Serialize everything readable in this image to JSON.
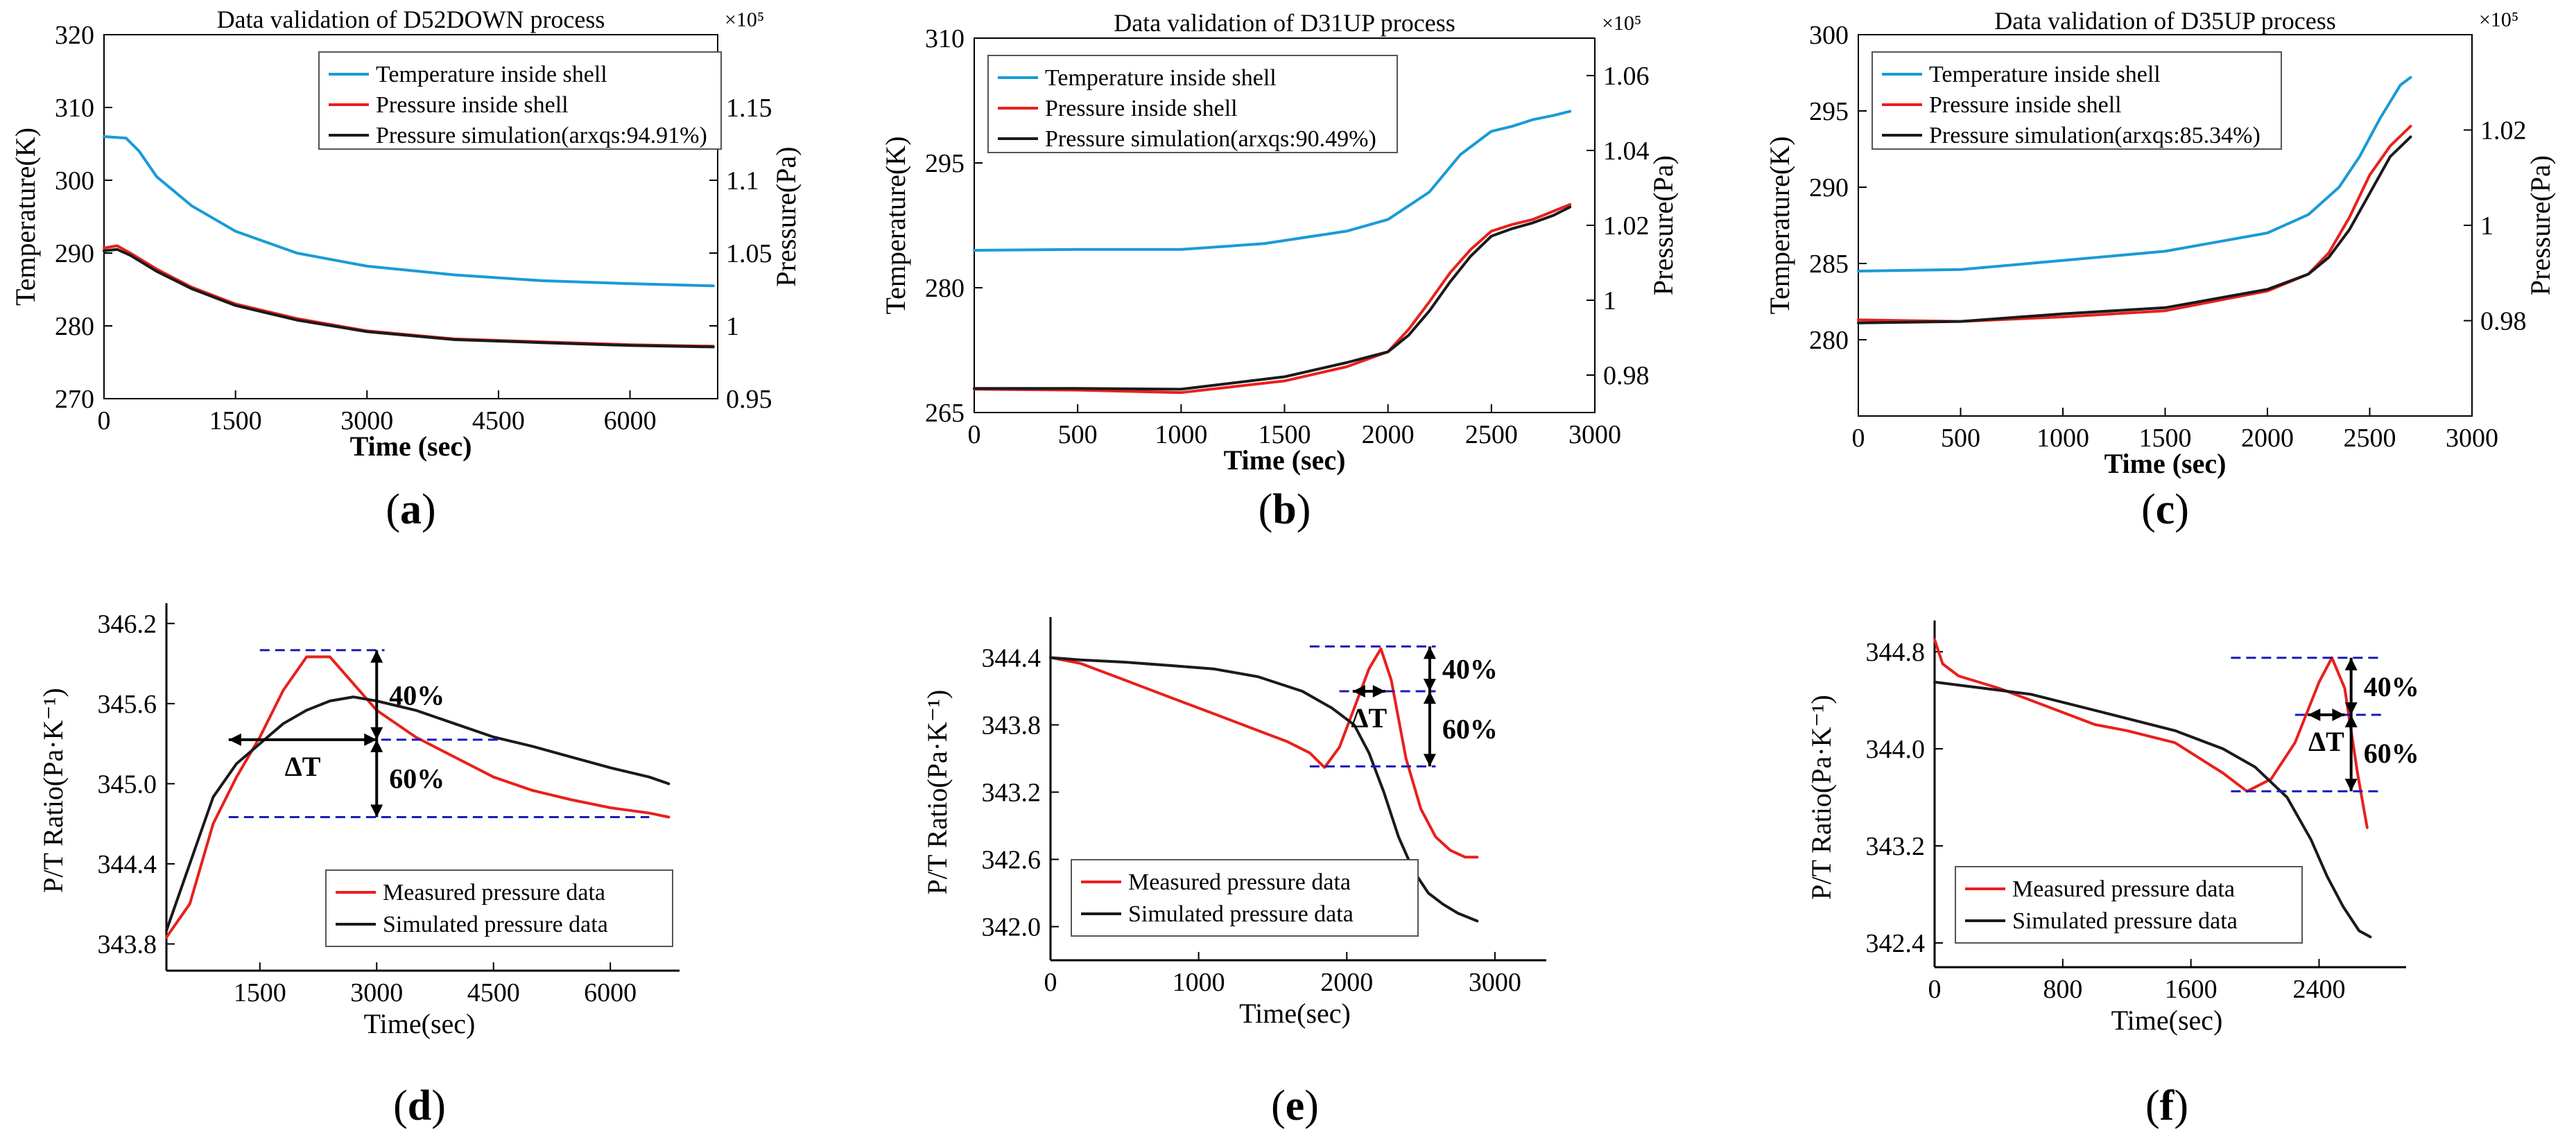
{
  "charts": [
    {
      "id": "a",
      "style": "top",
      "title": "Data validation of D52DOWN process",
      "caption": "a",
      "xlabel": "Time (sec)",
      "ylabel_left": "Temperature(K)",
      "ylabel_right": "Pressure(Pa)",
      "exponent_label": "×10⁵",
      "xlim": [
        0,
        7000
      ],
      "ylim_left": [
        270,
        320
      ],
      "ylim_right": [
        0.95,
        1.2
      ],
      "xticks": [
        0,
        1500,
        3000,
        4500,
        6000
      ],
      "yticks_left": [
        270,
        280,
        290,
        300,
        310,
        320
      ],
      "yticks_right": [
        0.95,
        1,
        1.05,
        1.1,
        1.15
      ],
      "yticks_right_labels": [
        "0.95",
        "1",
        "1.05",
        "1.1",
        "1.15"
      ],
      "legend": [
        "Temperature inside shell",
        "Pressure inside shell",
        "Pressure simulation(arxqs:94.91%)"
      ],
      "series": [
        {
          "name": "Temperature inside shell",
          "color": "#1b9ad6",
          "axis": "left",
          "x": [
            0,
            250,
            400,
            600,
            1000,
            1500,
            2200,
            3000,
            4000,
            5000,
            6000,
            6950
          ],
          "y": [
            306,
            305.8,
            304,
            300.5,
            296.5,
            293,
            290,
            288.2,
            287,
            286.2,
            285.8,
            285.5
          ]
        },
        {
          "name": "Pressure inside shell",
          "color": "#e8201c",
          "axis": "left",
          "x": [
            0,
            150,
            300,
            600,
            1000,
            1500,
            2200,
            3000,
            4000,
            5000,
            6000,
            6950
          ],
          "y": [
            290.7,
            291,
            290,
            287.8,
            285.3,
            283,
            281,
            279.3,
            278.2,
            277.8,
            277.4,
            277.2
          ]
        },
        {
          "name": "Pressure simulation(arxqs:94.91%)",
          "color": "#1a1a1a",
          "axis": "left",
          "x": [
            0,
            150,
            300,
            600,
            1000,
            1500,
            2200,
            3000,
            4000,
            5000,
            6000,
            6950
          ],
          "y": [
            290.3,
            290.5,
            289.7,
            287.5,
            285.1,
            282.8,
            280.8,
            279.2,
            278.1,
            277.7,
            277.3,
            277.1
          ]
        }
      ]
    },
    {
      "id": "b",
      "style": "top",
      "title": "Data validation of D31UP process",
      "caption": "b",
      "xlabel": "Time (sec)",
      "ylabel_left": "Temperature(K)",
      "ylabel_right": "Pressure(Pa)",
      "exponent_label": "×10⁵",
      "xlim": [
        0,
        3000
      ],
      "ylim_left": [
        265,
        310
      ],
      "ylim_right": [
        0.97,
        1.07
      ],
      "xticks": [
        0,
        500,
        1000,
        1500,
        2000,
        2500,
        3000
      ],
      "yticks_left": [
        265,
        280,
        295,
        310
      ],
      "yticks_right": [
        0.98,
        1,
        1.02,
        1.04,
        1.06
      ],
      "yticks_right_labels": [
        "0.98",
        "1",
        "1.02",
        "1.04",
        "1.06"
      ],
      "legend": [
        "Temperature inside shell",
        "Pressure inside shell",
        "Pressure simulation(arxqs:90.49%)"
      ],
      "series": [
        {
          "name": "Temperature inside shell",
          "color": "#1b9ad6",
          "axis": "left",
          "x": [
            0,
            500,
            1000,
            1400,
            1800,
            2000,
            2200,
            2350,
            2500,
            2600,
            2700,
            2800,
            2880
          ],
          "y": [
            284.5,
            284.6,
            284.6,
            285.3,
            286.8,
            288.2,
            291.5,
            296,
            298.8,
            299.4,
            300.2,
            300.7,
            301.2
          ]
        },
        {
          "name": "Pressure inside shell",
          "color": "#e8201c",
          "axis": "left",
          "x": [
            0,
            500,
            1000,
            1500,
            1800,
            2000,
            2100,
            2200,
            2300,
            2400,
            2500,
            2600,
            2700,
            2800,
            2880
          ],
          "y": [
            267.8,
            267.7,
            267.4,
            268.8,
            270.5,
            272.3,
            275,
            278.3,
            281.8,
            284.6,
            286.8,
            287.6,
            288.2,
            289.2,
            290
          ]
        },
        {
          "name": "Pressure simulation(arxqs:90.49%)",
          "color": "#1a1a1a",
          "axis": "left",
          "x": [
            0,
            500,
            1000,
            1500,
            1800,
            2000,
            2100,
            2200,
            2300,
            2400,
            2500,
            2600,
            2700,
            2800,
            2880
          ],
          "y": [
            267.9,
            267.9,
            267.8,
            269.3,
            271,
            272.3,
            274.3,
            277.2,
            280.7,
            283.8,
            286.2,
            287.1,
            287.8,
            288.7,
            289.7
          ]
        }
      ]
    },
    {
      "id": "c",
      "style": "top",
      "title": "Data validation of D35UP process",
      "caption": "c",
      "xlabel": "Time (sec)",
      "ylabel_left": "Temperature(K)",
      "ylabel_right": "Pressure(Pa)",
      "exponent_label": "×10⁵",
      "xlim": [
        0,
        3000
      ],
      "ylim_left": [
        275,
        300
      ],
      "ylim_right": [
        0.96,
        1.04
      ],
      "xticks": [
        0,
        500,
        1000,
        1500,
        2000,
        2500,
        3000
      ],
      "yticks_left": [
        280,
        285,
        290,
        295,
        300
      ],
      "yticks_right": [
        0.98,
        1,
        1.02
      ],
      "yticks_right_labels": [
        "0.98",
        "1",
        "1.02"
      ],
      "legend": [
        "Temperature inside shell",
        "Pressure inside shell",
        "Pressure simulation(arxqs:85.34%)"
      ],
      "series": [
        {
          "name": "Temperature inside shell",
          "color": "#1b9ad6",
          "axis": "left",
          "x": [
            0,
            500,
            1000,
            1500,
            2000,
            2200,
            2350,
            2450,
            2550,
            2650,
            2700
          ],
          "y": [
            284.5,
            284.6,
            285.2,
            285.8,
            287,
            288.2,
            290,
            292,
            294.5,
            296.7,
            297.2
          ]
        },
        {
          "name": "Pressure inside shell",
          "color": "#e8201c",
          "axis": "left",
          "x": [
            0,
            500,
            1000,
            1500,
            2000,
            2200,
            2300,
            2400,
            2500,
            2600,
            2700
          ],
          "y": [
            281.3,
            281.2,
            281.5,
            281.9,
            283.2,
            284.3,
            285.7,
            288,
            290.8,
            292.7,
            294
          ]
        },
        {
          "name": "Pressure simulation(arxqs:85.34%)",
          "color": "#1a1a1a",
          "axis": "left",
          "x": [
            0,
            500,
            1000,
            1500,
            2000,
            2200,
            2300,
            2400,
            2500,
            2600,
            2700
          ],
          "y": [
            281.1,
            281.2,
            281.7,
            282.1,
            283.3,
            284.3,
            285.4,
            287.2,
            289.6,
            292,
            293.3
          ]
        }
      ]
    },
    {
      "id": "d",
      "style": "bottom",
      "caption": "d",
      "xlabel": "Time(sec)",
      "ylabel_left": "P/T Ratio(Pa·K⁻¹)",
      "xlim": [
        300,
        6800
      ],
      "ylim_left": [
        343.6,
        346.3
      ],
      "xticks": [
        1500,
        3000,
        4500,
        6000
      ],
      "yticks_left": [
        343.8,
        344.4,
        345.0,
        345.6,
        346.2
      ],
      "yticks_left_labels": [
        "343.8",
        "344.4",
        "345.0",
        "345.6",
        "346.2"
      ],
      "legend": [
        "Measured pressure data",
        "Simulated pressure data"
      ],
      "annotations": {
        "pct_top": "40%",
        "pct_bottom": "60%",
        "delta": "ΔT",
        "y_top": 346.0,
        "y_mid": 345.33,
        "y_bot": 344.75,
        "x_arrow": 3000,
        "x_delta_from": 1100,
        "x_delta_to": 3000,
        "line_top_x": [
          1500,
          3100
        ],
        "line_mid_x": [
          1100,
          4600
        ],
        "line_bot_x": [
          1100,
          6500
        ]
      },
      "series": [
        {
          "name": "Measured pressure data",
          "color": "#e8201c",
          "x": [
            300,
            600,
            900,
            1200,
            1500,
            1800,
            2100,
            2400,
            2700,
            3000,
            3500,
            4000,
            4500,
            5000,
            5500,
            6000,
            6500,
            6750
          ],
          "y": [
            343.85,
            344.1,
            344.7,
            345.05,
            345.35,
            345.7,
            345.95,
            345.95,
            345.75,
            345.55,
            345.35,
            345.2,
            345.05,
            344.95,
            344.88,
            344.82,
            344.78,
            344.75
          ]
        },
        {
          "name": "Simulated pressure data",
          "color": "#1a1a1a",
          "x": [
            300,
            600,
            900,
            1200,
            1500,
            1800,
            2100,
            2400,
            2700,
            3000,
            3500,
            4000,
            4500,
            5000,
            5500,
            6000,
            6500,
            6750
          ],
          "y": [
            343.9,
            344.4,
            344.9,
            345.15,
            345.3,
            345.45,
            345.55,
            345.62,
            345.65,
            345.62,
            345.55,
            345.45,
            345.35,
            345.28,
            345.2,
            345.12,
            345.05,
            345.0
          ]
        }
      ]
    },
    {
      "id": "e",
      "style": "bottom",
      "caption": "e",
      "xlabel": "Time(sec)",
      "ylabel_left": "P/T Ratio(Pa·K⁻¹)",
      "xlim": [
        0,
        3300
      ],
      "ylim_left": [
        341.7,
        344.7
      ],
      "xticks": [
        0,
        1000,
        2000,
        3000
      ],
      "yticks_left": [
        342.0,
        342.6,
        343.2,
        343.8,
        344.4
      ],
      "yticks_left_labels": [
        "342.0",
        "342.6",
        "343.2",
        "343.8",
        "344.4"
      ],
      "legend": [
        "Measured pressure data",
        "Simulated pressure data"
      ],
      "annotations": {
        "pct_top": "40%",
        "pct_bottom": "60%",
        "delta": "ΔT",
        "y_top": 344.5,
        "y_mid": 344.1,
        "y_bot": 343.43,
        "x_arrow": 2560,
        "x_delta_from": 2040,
        "x_delta_to": 2260,
        "line_top_x": [
          1750,
          2600
        ],
        "line_mid_x": [
          1950,
          2600
        ],
        "line_bot_x": [
          1750,
          2600
        ]
      },
      "series": [
        {
          "name": "Measured pressure data",
          "color": "#e8201c",
          "x": [
            0,
            200,
            500,
            800,
            1100,
            1400,
            1600,
            1750,
            1850,
            1950,
            2050,
            2150,
            2230,
            2300,
            2400,
            2500,
            2600,
            2700,
            2800,
            2880
          ],
          "y": [
            344.4,
            344.35,
            344.2,
            344.05,
            343.9,
            343.75,
            343.65,
            343.55,
            343.42,
            343.6,
            343.95,
            344.3,
            344.48,
            344.2,
            343.5,
            343.05,
            342.8,
            342.68,
            342.62,
            342.62
          ]
        },
        {
          "name": "Simulated pressure data",
          "color": "#1a1a1a",
          "x": [
            0,
            200,
            500,
            800,
            1100,
            1400,
            1700,
            1900,
            2050,
            2150,
            2250,
            2350,
            2450,
            2550,
            2650,
            2750,
            2880
          ],
          "y": [
            344.4,
            344.38,
            344.36,
            344.33,
            344.3,
            344.23,
            344.1,
            343.95,
            343.8,
            343.55,
            343.2,
            342.8,
            342.5,
            342.3,
            342.2,
            342.12,
            342.05
          ]
        }
      ]
    },
    {
      "id": "f",
      "style": "bottom",
      "caption": "f",
      "xlabel": "Time(sec)",
      "ylabel_left": "P/T Ratio(Pa·K⁻¹)",
      "xlim": [
        0,
        2900
      ],
      "ylim_left": [
        342.2,
        345.0
      ],
      "xticks": [
        0,
        800,
        1600,
        2400
      ],
      "yticks_left": [
        342.4,
        343.2,
        344.0,
        344.8
      ],
      "yticks_left_labels": [
        "342.4",
        "343.2",
        "344.0",
        "344.8"
      ],
      "legend": [
        "Measured pressure data",
        "Simulated pressure data"
      ],
      "annotations": {
        "pct_top": "40%",
        "pct_bottom": "60%",
        "delta": "ΔT",
        "y_top": 344.75,
        "y_mid": 344.28,
        "y_bot": 343.65,
        "x_arrow": 2600,
        "x_delta_from": 2330,
        "x_delta_to": 2560,
        "line_top_x": [
          1850,
          2800
        ],
        "line_mid_x": [
          2250,
          2800
        ],
        "line_bot_x": [
          1850,
          2800
        ]
      },
      "series": [
        {
          "name": "Measured pressure data",
          "color": "#e8201c",
          "x": [
            0,
            50,
            150,
            400,
            700,
            1000,
            1200,
            1500,
            1800,
            1950,
            2100,
            2250,
            2400,
            2480,
            2560,
            2640,
            2700
          ],
          "y": [
            344.9,
            344.7,
            344.6,
            344.5,
            344.35,
            344.2,
            344.15,
            344.05,
            343.8,
            343.65,
            343.75,
            344.05,
            344.55,
            344.75,
            344.5,
            343.8,
            343.35
          ]
        },
        {
          "name": "Simulated pressure data",
          "color": "#1a1a1a",
          "x": [
            0,
            300,
            600,
            900,
            1200,
            1500,
            1800,
            2000,
            2200,
            2350,
            2450,
            2550,
            2650,
            2720
          ],
          "y": [
            344.55,
            344.5,
            344.45,
            344.35,
            344.25,
            344.15,
            344.0,
            343.85,
            343.6,
            343.25,
            342.95,
            342.7,
            342.5,
            342.45
          ]
        }
      ]
    }
  ]
}
